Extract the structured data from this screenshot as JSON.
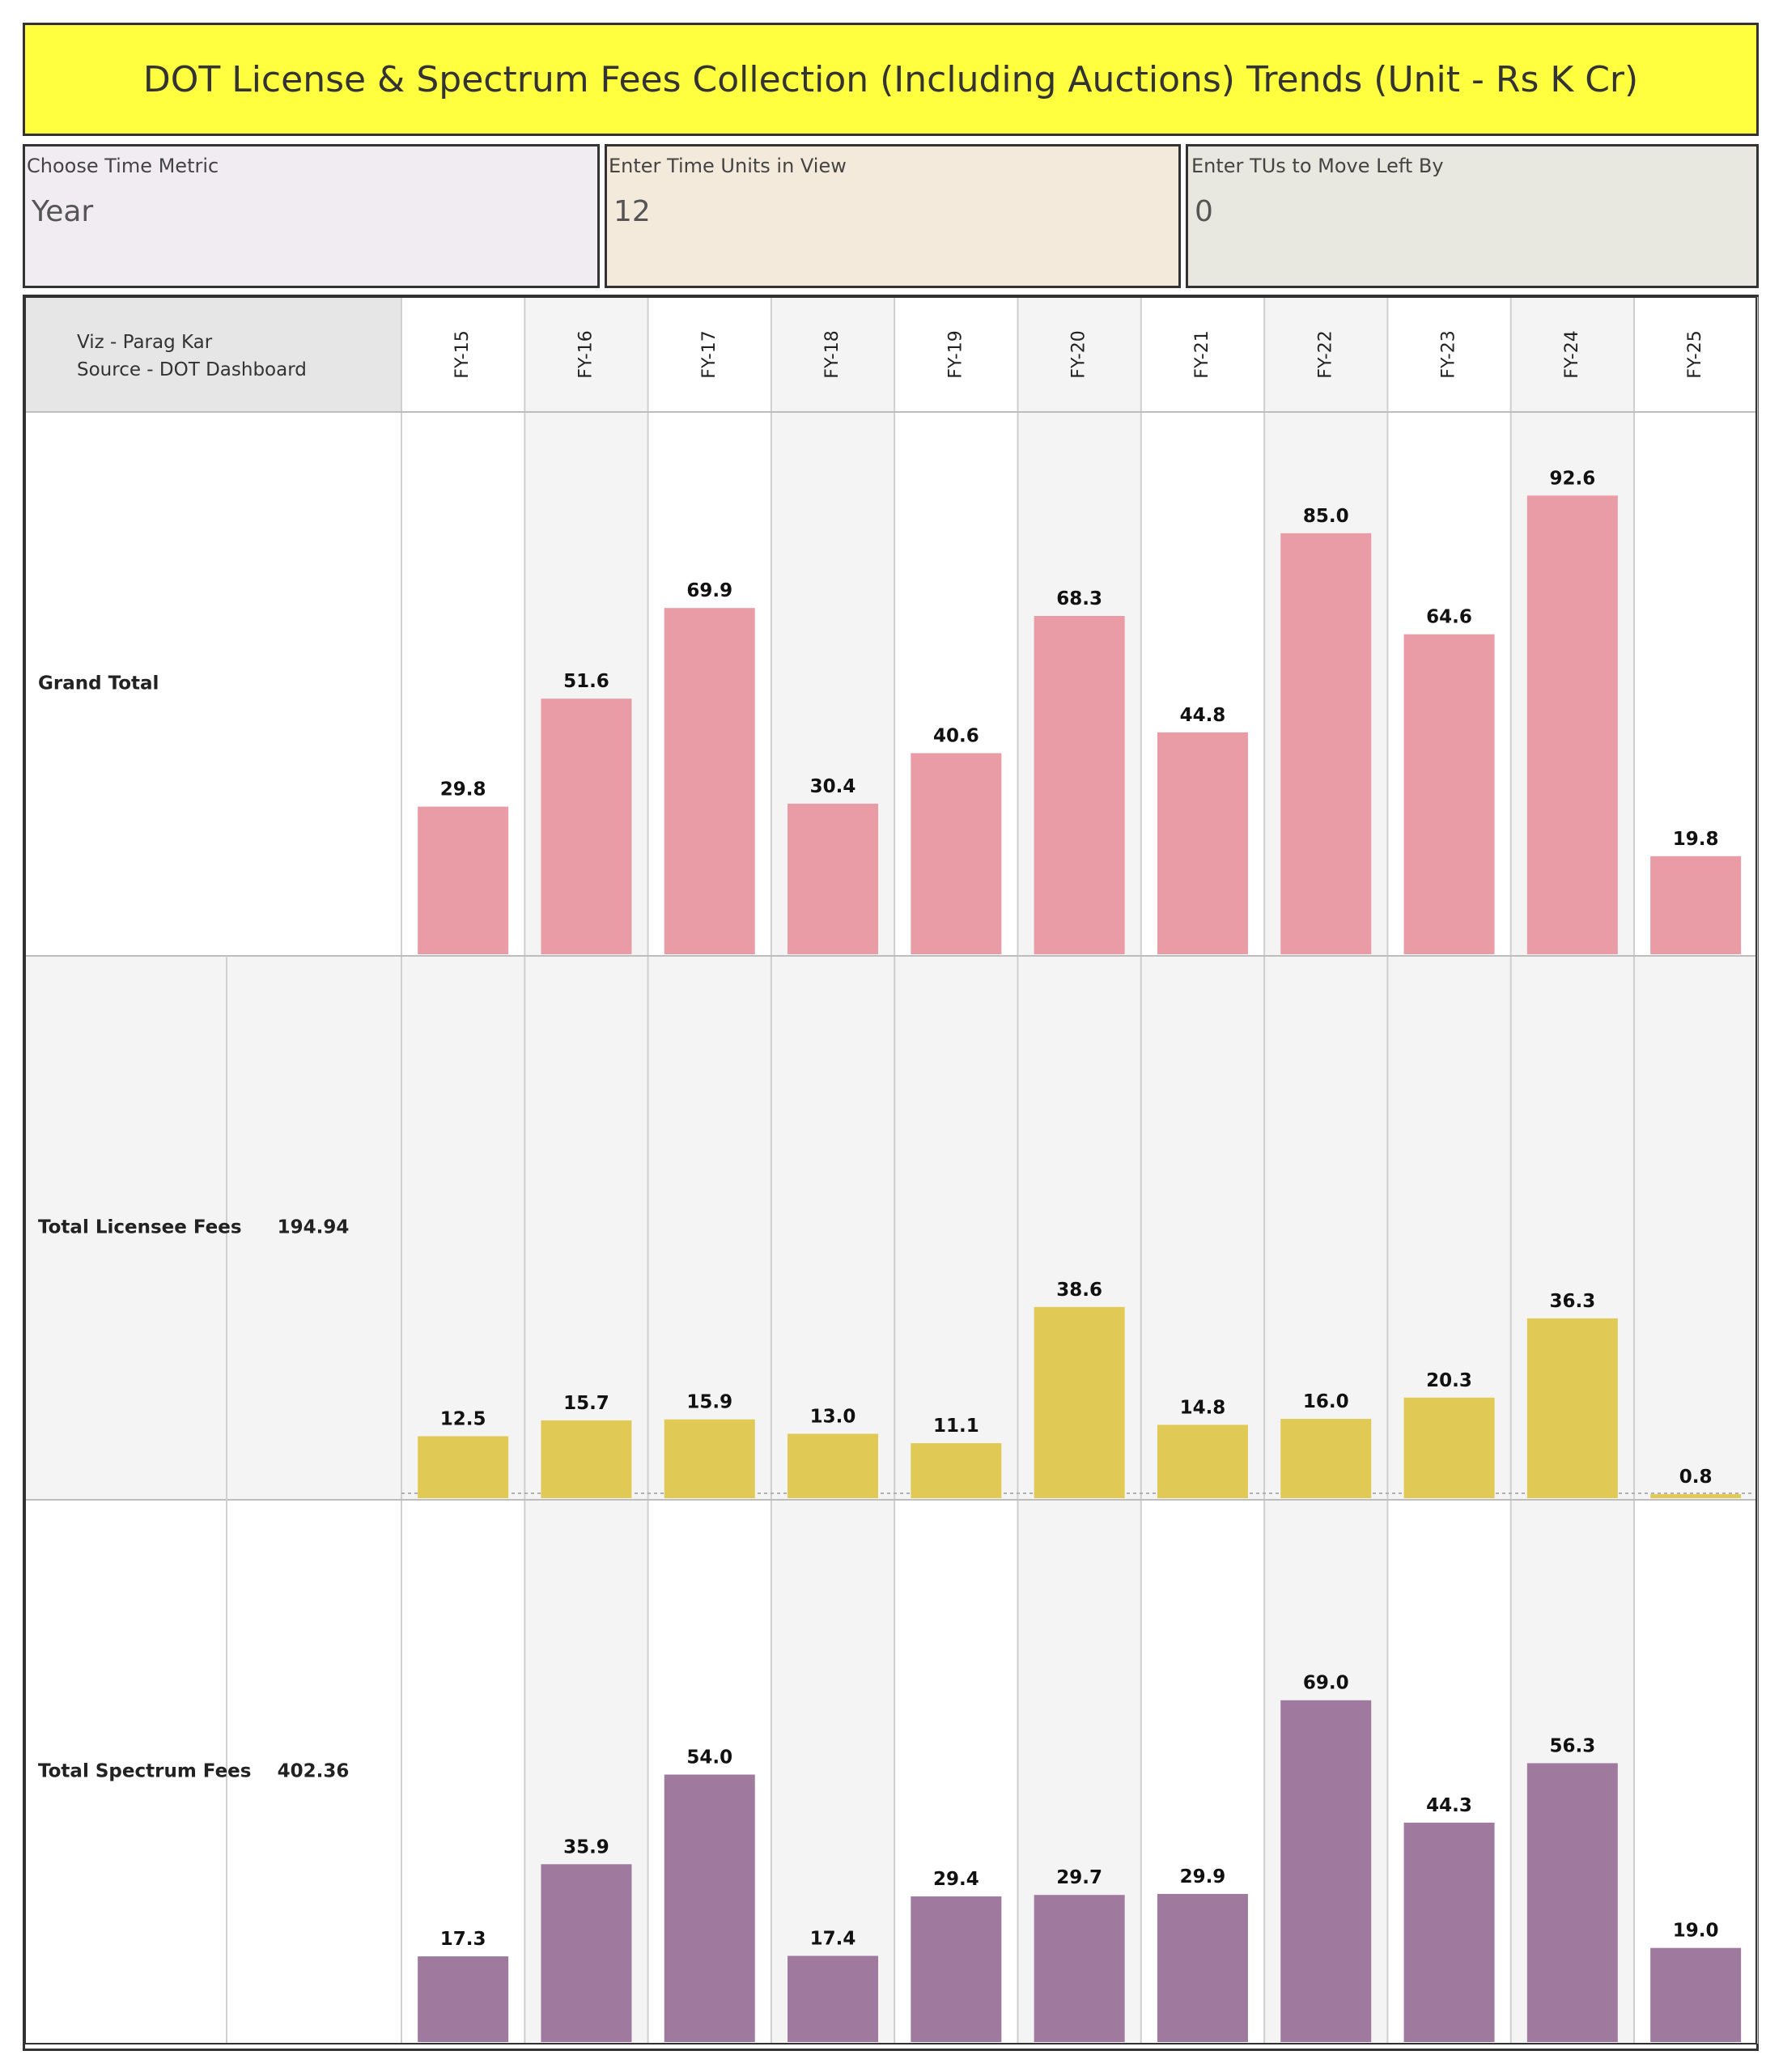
{
  "title": "DOT License & Spectrum Fees Collection (Including Auctions) Trends (Unit - Rs K Cr)",
  "parameters": [
    {
      "label": "Choose Time Metric",
      "value": "Year"
    },
    {
      "label": "Enter Time Units in View",
      "value": "12"
    },
    {
      "label": "Enter TUs to Move Left By",
      "value": "0"
    }
  ],
  "credits": {
    "line1": "Viz - Parag Kar",
    "line2": "Source - DOT Dashboard"
  },
  "colors": {
    "grand_total": "#e99ca6",
    "licensee": "#e1c955",
    "spectrum": "#a07a9e",
    "title_bg": "#ffff3f"
  },
  "chart_data": {
    "type": "bar",
    "categories": [
      "FY-15",
      "FY-16",
      "FY-17",
      "FY-18",
      "FY-19",
      "FY-20",
      "FY-21",
      "FY-22",
      "FY-23",
      "FY-24",
      "FY-25"
    ],
    "series": [
      {
        "name": "Grand Total",
        "total": "",
        "values": [
          29.8,
          51.6,
          69.9,
          30.4,
          40.6,
          68.3,
          44.8,
          85.0,
          64.6,
          92.6,
          19.8
        ]
      },
      {
        "name": "Total Licensee Fees",
        "total": "194.94",
        "values": [
          12.5,
          15.7,
          15.9,
          13.0,
          11.1,
          38.6,
          14.8,
          16.0,
          20.3,
          36.3,
          0.8
        ]
      },
      {
        "name": "Total Spectrum Fees",
        "total": "402.36",
        "values": [
          17.3,
          35.9,
          54.0,
          17.4,
          29.4,
          29.7,
          29.9,
          69.0,
          44.3,
          56.3,
          19.0
        ]
      }
    ],
    "value_format": "one decimal",
    "grid": false
  }
}
